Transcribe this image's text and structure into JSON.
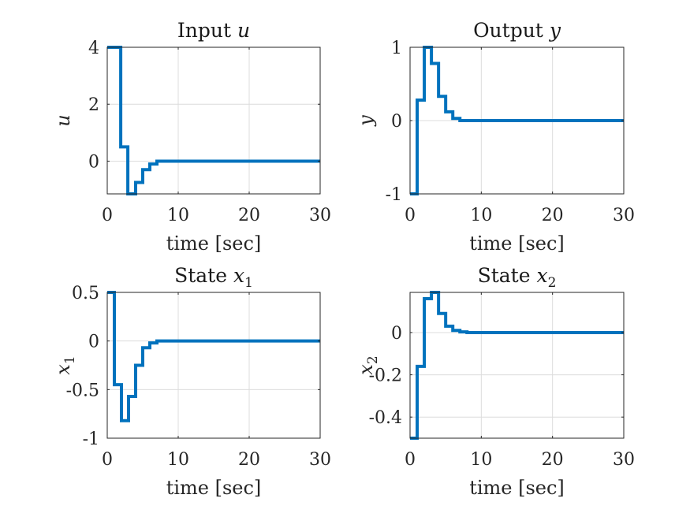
{
  "colors": {
    "line": "#0072BD",
    "grid": "#dcdcdc",
    "axis": "#262626"
  },
  "chart_data": [
    {
      "type": "line",
      "style": "stairs",
      "title_text": "Input ",
      "title_var": "u",
      "ylabel_var": "u",
      "xlabel": "time [sec]",
      "xlim": [
        0,
        30
      ],
      "ylim": [
        -1.15,
        4
      ],
      "xticks": [
        0,
        10,
        20,
        30
      ],
      "xtick_labels": [
        "0",
        "10",
        "20",
        "30"
      ],
      "yticks": [
        0,
        2,
        4
      ],
      "ytick_labels": [
        "0",
        "2",
        "4"
      ],
      "grid": true,
      "series": [
        {
          "x": [
            0,
            1.9,
            2.9,
            4.0,
            5.0,
            6.0,
            7.0,
            30
          ],
          "y": [
            4,
            0.5,
            -1.15,
            -0.75,
            -0.3,
            -0.1,
            0,
            0
          ]
        }
      ]
    },
    {
      "type": "line",
      "style": "stairs",
      "title_text": "Output ",
      "title_var": "y",
      "ylabel_var": "y",
      "xlabel": "time [sec]",
      "xlim": [
        0,
        30
      ],
      "ylim": [
        -1,
        1
      ],
      "xticks": [
        0,
        10,
        20,
        30
      ],
      "xtick_labels": [
        "0",
        "10",
        "20",
        "30"
      ],
      "yticks": [
        -1,
        0,
        1
      ],
      "ytick_labels": [
        "-1",
        "0",
        "1"
      ],
      "grid": true,
      "series": [
        {
          "x": [
            0,
            1.0,
            2.0,
            3.0,
            4.0,
            5.0,
            6.0,
            7.0,
            30
          ],
          "y": [
            -1,
            0.28,
            1.0,
            0.78,
            0.33,
            0.12,
            0.03,
            0,
            0
          ]
        }
      ]
    },
    {
      "type": "line",
      "style": "stairs",
      "title_text": "State ",
      "title_var": "x",
      "title_sub": "1",
      "ylabel_var": "x",
      "ylabel_sub": "1",
      "xlabel": "time [sec]",
      "xlim": [
        0,
        30
      ],
      "ylim": [
        -1,
        0.5
      ],
      "xticks": [
        0,
        10,
        20,
        30
      ],
      "xtick_labels": [
        "0",
        "10",
        "20",
        "30"
      ],
      "yticks": [
        -1,
        -0.5,
        0,
        0.5
      ],
      "ytick_labels": [
        "-1",
        "-0.5",
        "0",
        "0.5"
      ],
      "grid": true,
      "series": [
        {
          "x": [
            0,
            1.0,
            2.0,
            3.0,
            4.0,
            5.0,
            6.0,
            7.0,
            30
          ],
          "y": [
            0.5,
            -0.45,
            -0.82,
            -0.57,
            -0.25,
            -0.07,
            -0.02,
            0,
            0
          ]
        }
      ]
    },
    {
      "type": "line",
      "style": "stairs",
      "title_text": "State ",
      "title_var": "x",
      "title_sub": "2",
      "ylabel_var": "x",
      "ylabel_sub": "2",
      "xlabel": "time [sec]",
      "xlim": [
        0,
        30
      ],
      "ylim": [
        -0.5,
        0.19
      ],
      "xticks": [
        0,
        10,
        20,
        30
      ],
      "xtick_labels": [
        "0",
        "10",
        "20",
        "30"
      ],
      "yticks": [
        -0.4,
        -0.2,
        0
      ],
      "ytick_labels": [
        "-0.4",
        "-0.2",
        "0"
      ],
      "grid": true,
      "series": [
        {
          "x": [
            0,
            1.0,
            2.0,
            3.0,
            4.0,
            5.0,
            6.0,
            7.0,
            8.0,
            30
          ],
          "y": [
            -0.5,
            -0.16,
            0.16,
            0.19,
            0.09,
            0.03,
            0.01,
            0.003,
            0,
            0
          ]
        }
      ]
    }
  ]
}
